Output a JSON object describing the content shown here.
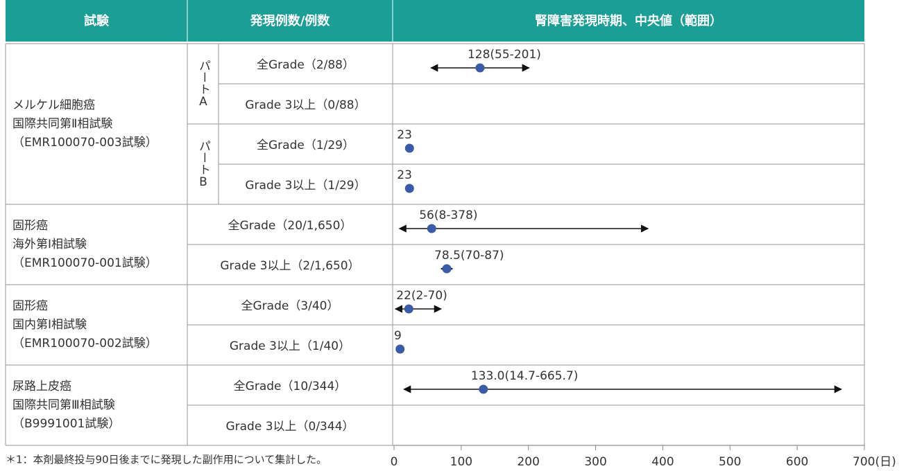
{
  "table": {
    "header": [
      "試験",
      "発現例数/例数",
      "腎障害発現時期、中央値（範囲）"
    ],
    "parts": [
      "パートA",
      "パートB"
    ],
    "studies": [
      {
        "name": [
          "メルケル細胞癌",
          "国際共同第Ⅱ相試験",
          "（EMR100070-003試験）"
        ],
        "rows": [
          "全Grade（2/88）",
          "Grade 3以上（0/88）",
          "全Grade（1/29）",
          "Grade 3以上（1/29）"
        ]
      },
      {
        "name": [
          "固形癌",
          "海外第Ⅰ相試験",
          "（EMR100070-001試験）"
        ],
        "rows": [
          "全Grade（20/1,650）",
          "Grade 3以上（2/1,650）"
        ]
      },
      {
        "name": [
          "固形癌",
          "国内第Ⅰ相試験",
          "（EMR100070-002試験）"
        ],
        "rows": [
          "全Grade（3/40）",
          "Grade 3以上（1/40）"
        ]
      },
      {
        "name": [
          "尿路上皮癌",
          "国際共同第Ⅲ相試験",
          "（B9991001試験）"
        ],
        "rows": [
          "全Grade（10/344）",
          "Grade 3以上（0/344）"
        ]
      }
    ],
    "footnote": "＊1：本剤最終投与90日後までに発現した副作用について集計した。"
  },
  "chart_data": {
    "type": "forest",
    "color": "#3a5ba8",
    "values": [
      128,
      null,
      23,
      23,
      56,
      78.5,
      22,
      9,
      133.0,
      null
    ],
    "low": [
      55,
      null,
      null,
      null,
      8,
      70,
      2,
      null,
      14.7,
      null
    ],
    "high": [
      201,
      null,
      null,
      null,
      378,
      87,
      70,
      null,
      665.7,
      null
    ],
    "value_labels": [
      "128(55-201)",
      null,
      "23",
      "23",
      "56(8-378)",
      "78.5(70-87)",
      "22(2-70)",
      "9",
      "133.0(14.7-665.7)",
      null
    ],
    "xlim": [
      0,
      700
    ],
    "xticks": [
      0,
      100,
      200,
      300,
      400,
      500,
      600,
      {
        "value": 700,
        "label": "700(日)"
      }
    ]
  }
}
